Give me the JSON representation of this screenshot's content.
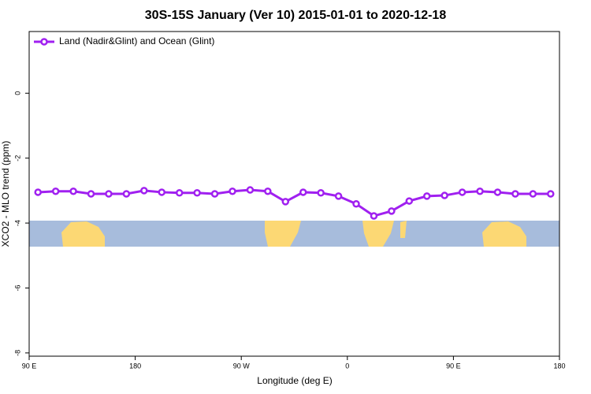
{
  "chart_data": {
    "type": "line",
    "title": "30S-15S January (Ver 10)   2015-01-01 to 2020-12-18",
    "xlabel": "Longitude (deg E)",
    "ylabel": "XCO2 - MLO trend (ppm)",
    "x": [
      97.5,
      112.5,
      127.5,
      142.5,
      157.5,
      172.5,
      187.5,
      202.5,
      217.5,
      232.5,
      247.5,
      262.5,
      277.5,
      292.5,
      307.5,
      322.5,
      337.5,
      352.5,
      367.5,
      382.5,
      397.5,
      412.5,
      427.5,
      442.5,
      457.5,
      472.5,
      487.5,
      502.5,
      517.5,
      532.5
    ],
    "series": [
      {
        "name": "Land (Nadir&Glint) and Ocean (Glint)",
        "color": "#a020f0",
        "values": [
          -3.05,
          -3.02,
          -3.02,
          -3.1,
          -3.1,
          -3.1,
          -3.0,
          -3.05,
          -3.07,
          -3.07,
          -3.1,
          -3.02,
          -2.98,
          -3.02,
          -3.34,
          -3.05,
          -3.07,
          -3.17,
          -3.41,
          -3.78,
          -3.63,
          -3.32,
          -3.17,
          -3.15,
          -3.05,
          -3.02,
          -3.05,
          -3.1,
          -3.1,
          -3.1
        ]
      }
    ],
    "xlim": [
      90,
      540
    ],
    "xticks": [
      {
        "value": 90,
        "label": "90 E"
      },
      {
        "value": 180,
        "label": "180"
      },
      {
        "value": 270,
        "label": "90 W"
      },
      {
        "value": 360,
        "label": "0"
      },
      {
        "value": 450,
        "label": "90 E"
      },
      {
        "value": 540,
        "label": "180"
      }
    ],
    "ylim": [
      -8.1,
      1.9
    ],
    "yticks": [
      0,
      -2,
      -4,
      -6,
      -8
    ],
    "legend": "top-left"
  }
}
